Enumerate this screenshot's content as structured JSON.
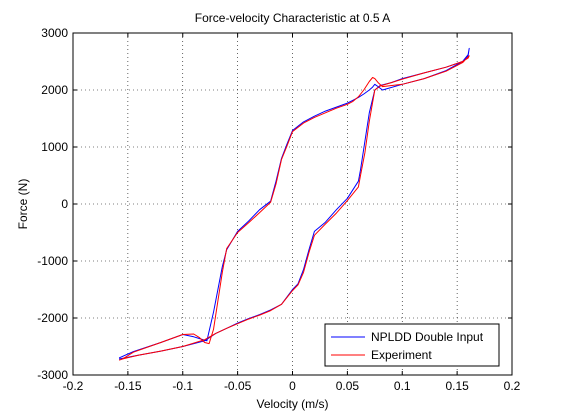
{
  "chart_data": {
    "type": "line",
    "title": "Force-velocity Characteristic at 0.5 A",
    "xlabel": "Velocity (m/s)",
    "ylabel": "Force (N)",
    "xlim": [
      -0.2,
      0.2
    ],
    "ylim": [
      -3000,
      3000
    ],
    "xticks": [
      -0.2,
      -0.15,
      -0.1,
      -0.05,
      0,
      0.05,
      0.1,
      0.15,
      0.2
    ],
    "xtick_labels": [
      "-0.2",
      "-0.15",
      "-0.1",
      "-0.05",
      "0",
      "0.05",
      "0.1",
      "0.15",
      "0.2"
    ],
    "yticks": [
      -3000,
      -2000,
      -1000,
      0,
      1000,
      2000,
      3000
    ],
    "ytick_labels": [
      "-3000",
      "-2000",
      "-1000",
      "0",
      "1000",
      "2000",
      "3000"
    ],
    "grid": true,
    "legend_position": "bottom-right",
    "series": [
      {
        "name": "NPLDD Double Input",
        "color": "#0000ff",
        "x": [
          -0.158,
          -0.145,
          -0.12,
          -0.1,
          -0.09,
          -0.085,
          -0.078,
          -0.072,
          -0.068,
          -0.064,
          -0.06,
          -0.05,
          -0.04,
          -0.03,
          -0.02,
          -0.015,
          -0.01,
          -0.005,
          0,
          0.01,
          0.02,
          0.03,
          0.04,
          0.05,
          0.055,
          0.06,
          0.065,
          0.07,
          0.073,
          0.075,
          0.078,
          0.082,
          0.1,
          0.12,
          0.14,
          0.155,
          0.16,
          0.161,
          0.16,
          0.155,
          0.14,
          0.12,
          0.1,
          0.09,
          0.08,
          0.075,
          0.07,
          0.066,
          0.062,
          0.06,
          0.05,
          0.04,
          0.03,
          0.02,
          0.015,
          0.01,
          0.005,
          0,
          -0.01,
          -0.02,
          -0.03,
          -0.04,
          -0.05,
          -0.06,
          -0.07,
          -0.08,
          -0.1,
          -0.12,
          -0.14,
          -0.158
        ],
        "y": [
          -2700,
          -2590,
          -2430,
          -2290,
          -2330,
          -2360,
          -2400,
          -1900,
          -1500,
          -1100,
          -800,
          -480,
          -300,
          -100,
          50,
          400,
          800,
          1050,
          1290,
          1440,
          1540,
          1630,
          1700,
          1770,
          1820,
          1870,
          1930,
          2000,
          2050,
          2100,
          2060,
          2000,
          2100,
          2200,
          2340,
          2500,
          2620,
          2730,
          2600,
          2500,
          2400,
          2300,
          2200,
          2130,
          2080,
          2000,
          1600,
          1100,
          600,
          400,
          100,
          -100,
          -320,
          -480,
          -800,
          -1150,
          -1400,
          -1500,
          -1760,
          -1860,
          -1940,
          -2010,
          -2090,
          -2180,
          -2270,
          -2400,
          -2500,
          -2580,
          -2650,
          -2720
        ]
      },
      {
        "name": "Experiment",
        "color": "#ff0000",
        "x": [
          -0.158,
          -0.155,
          -0.145,
          -0.12,
          -0.1,
          -0.09,
          -0.085,
          -0.08,
          -0.076,
          -0.072,
          -0.068,
          -0.064,
          -0.06,
          -0.05,
          -0.04,
          -0.03,
          -0.02,
          -0.015,
          -0.01,
          -0.005,
          0,
          0.01,
          0.02,
          0.03,
          0.04,
          0.05,
          0.055,
          0.06,
          0.065,
          0.07,
          0.073,
          0.075,
          0.078,
          0.082,
          0.1,
          0.12,
          0.14,
          0.155,
          0.16,
          0.161,
          0.16,
          0.155,
          0.14,
          0.12,
          0.1,
          0.09,
          0.08,
          0.075,
          0.07,
          0.066,
          0.062,
          0.06,
          0.05,
          0.04,
          0.03,
          0.02,
          0.015,
          0.01,
          0.005,
          0,
          -0.01,
          -0.02,
          -0.03,
          -0.04,
          -0.05,
          -0.06,
          -0.07,
          -0.08,
          -0.1,
          -0.12,
          -0.14,
          -0.155,
          -0.158
        ],
        "y": [
          -2740,
          -2720,
          -2600,
          -2430,
          -2290,
          -2280,
          -2340,
          -2430,
          -2450,
          -2200,
          -1700,
          -1200,
          -780,
          -500,
          -330,
          -150,
          30,
          350,
          780,
          1020,
          1270,
          1420,
          1520,
          1600,
          1680,
          1750,
          1800,
          1880,
          2000,
          2150,
          2220,
          2200,
          2130,
          2060,
          2100,
          2200,
          2330,
          2480,
          2580,
          2600,
          2560,
          2500,
          2400,
          2300,
          2190,
          2130,
          2070,
          2000,
          1450,
          900,
          500,
          300,
          60,
          -160,
          -350,
          -550,
          -850,
          -1200,
          -1420,
          -1520,
          -1760,
          -1870,
          -1950,
          -2020,
          -2100,
          -2180,
          -2270,
          -2380,
          -2500,
          -2580,
          -2650,
          -2720,
          -2740
        ]
      }
    ]
  }
}
